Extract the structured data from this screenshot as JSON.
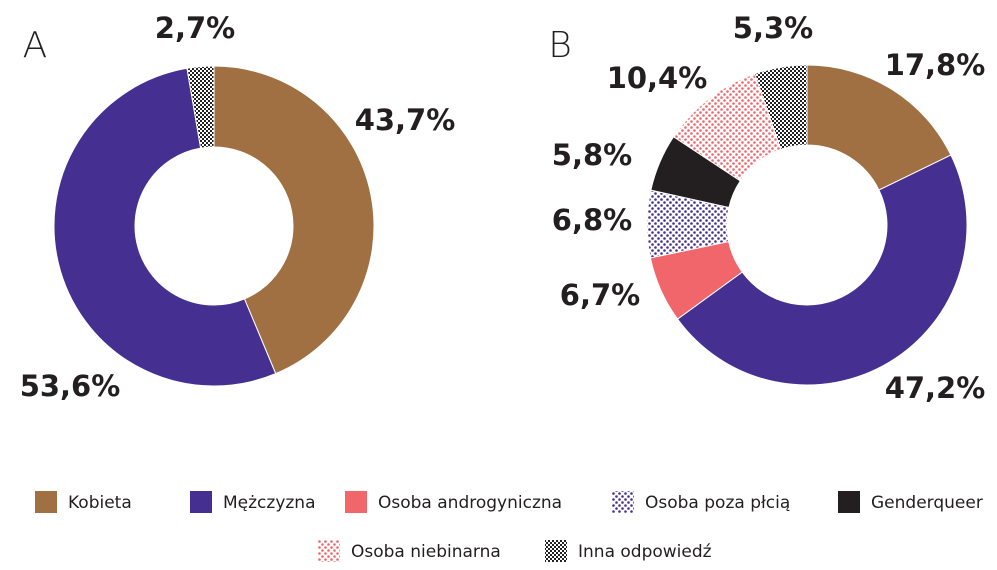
{
  "chart_data": [
    {
      "type": "donut",
      "title": "A",
      "categories": [
        "Kobieta",
        "Mężczyzna",
        "Inna odpowiedź"
      ],
      "values": [
        43.7,
        53.6,
        2.7
      ],
      "value_labels": [
        "43,7%",
        "53,6%",
        "2,7%"
      ],
      "colors": [
        "#a06f42",
        "#452f91",
        "#222222"
      ],
      "patterns": [
        null,
        null,
        "checker"
      ]
    },
    {
      "type": "donut",
      "title": "B",
      "categories": [
        "Kobieta",
        "Mężczyzna",
        "Osoba androgyniczna",
        "Osoba poza płcią",
        "Genderqueer",
        "Osoba niebinarna",
        "Inna odpowiedź"
      ],
      "values": [
        17.8,
        47.2,
        6.7,
        6.8,
        5.8,
        10.4,
        5.3
      ],
      "value_labels": [
        "17,8%",
        "47,2%",
        "6,7%",
        "6,8%",
        "5,8%",
        "10,4%",
        "5,3%"
      ],
      "colors": [
        "#a06f42",
        "#452f91",
        "#f0666b",
        "#452f91",
        "#231f20",
        "#f0666b",
        "#222222"
      ],
      "patterns": [
        null,
        null,
        null,
        "dots",
        null,
        "dots",
        "checker"
      ]
    }
  ]
}
